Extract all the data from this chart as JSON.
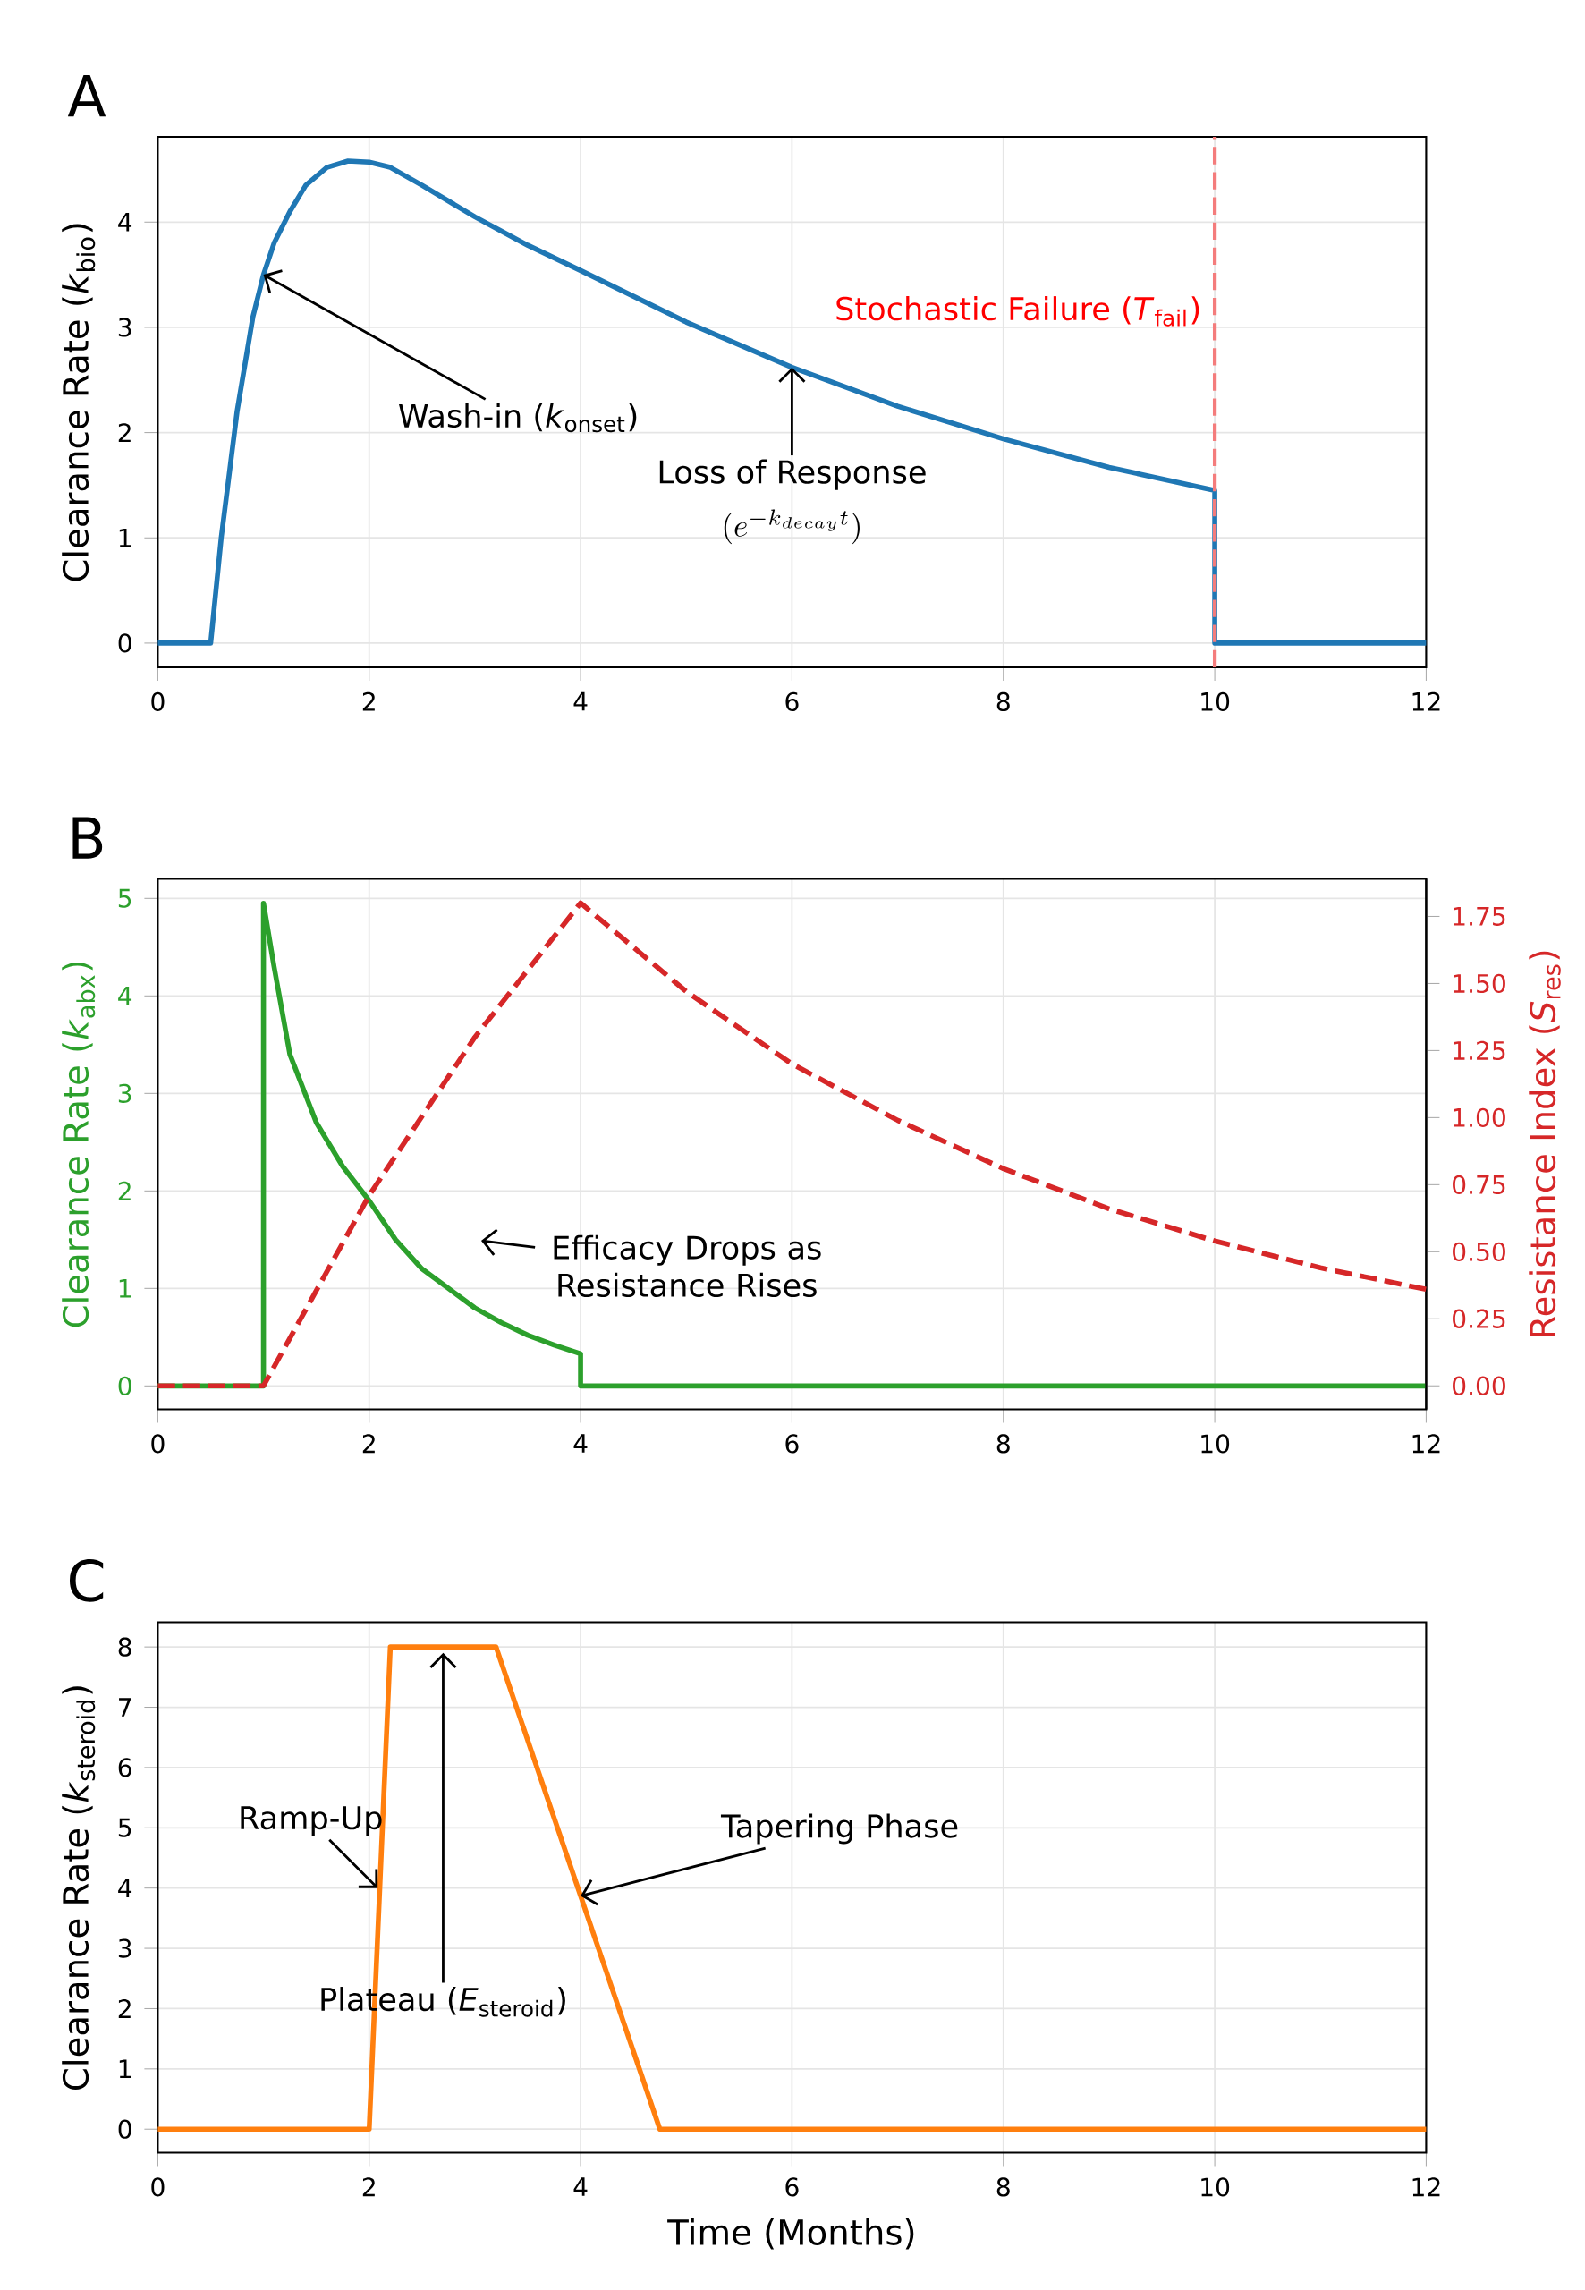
{
  "chart_data": [
    {
      "type": "line",
      "ylabel": "Clearance Rate (*k*$_{bio}$)",
      "x": [
        0,
        0.5,
        0.6,
        0.75,
        0.9,
        1.0,
        1.1,
        1.25,
        1.4,
        1.6,
        1.8,
        2.0,
        2.2,
        2.5,
        3,
        3.5,
        4,
        5,
        6,
        7,
        8,
        9,
        10,
        10,
        12
      ],
      "series": [
        {
          "color": "#1f77b4",
          "values": [
            0,
            0,
            1.0,
            2.2,
            3.1,
            3.5,
            3.8,
            4.1,
            4.35,
            4.52,
            4.58,
            4.57,
            4.52,
            4.35,
            4.05,
            3.78,
            3.54,
            3.05,
            2.62,
            2.25,
            1.94,
            1.67,
            1.45,
            0,
            0
          ]
        }
      ],
      "xlim": [
        0,
        12
      ],
      "ylim": [
        -0.23,
        4.81
      ],
      "xticks": [
        0,
        2,
        4,
        6,
        8,
        10,
        12
      ],
      "yticks": [
        0,
        1,
        2,
        3,
        4
      ],
      "grid": true,
      "line_style": "solid",
      "ref_lines": [
        {
          "axis": "x",
          "value": 10,
          "label": "Stochastic Failure (*T*$_{fail}$)",
          "color": "#f47c7c",
          "line_style": "dashed"
        }
      ],
      "annotations": [
        "A",
        {
          "text": "Wash-in (*k*$_{onset}$)",
          "x": 1.0,
          "y": 3.5
        },
        {
          "text": "Loss of Response",
          "x": 6,
          "y": 2.62
        },
        "(e^{-k_{decay}t})"
      ]
    },
    {
      "type": "line",
      "ylabel": "Clearance Rate (*k*$_{abx}$)",
      "y2label": "Resistance Index (*S*$_{res}$)",
      "series": [
        {
          "color": "#2ca02c",
          "line_style": "solid",
          "x": [
            0,
            1.0,
            1.0,
            1.1,
            1.25,
            1.5,
            1.75,
            2,
            2.25,
            2.5,
            2.75,
            3,
            3.25,
            3.5,
            3.75,
            4,
            4,
            12
          ],
          "values": [
            0,
            0,
            4.95,
            4.3,
            3.4,
            2.7,
            2.25,
            1.9,
            1.5,
            1.2,
            1.0,
            0.8,
            0.65,
            0.52,
            0.42,
            0.33,
            0,
            0
          ]
        },
        {
          "color": "#d62728",
          "line_style": "dashed",
          "axis": "y2",
          "x": [
            0,
            1,
            2,
            3,
            4,
            5,
            6,
            7,
            8,
            9,
            10,
            11,
            12
          ],
          "values": [
            0,
            0,
            0.71,
            1.3,
            1.8,
            1.47,
            1.2,
            0.99,
            0.81,
            0.66,
            0.54,
            0.44,
            0.36
          ]
        }
      ],
      "xlim": [
        0,
        12
      ],
      "ylim": [
        -0.24,
        5.2
      ],
      "y2lim": [
        -0.0875,
        1.89
      ],
      "xticks": [
        0,
        2,
        4,
        6,
        8,
        10,
        12
      ],
      "yticks": [
        0,
        1,
        2,
        3,
        4,
        5
      ],
      "y2ticks": [
        {
          "value": 0,
          "label": "0.00"
        },
        {
          "value": 0.25,
          "label": "0.25"
        },
        {
          "value": 0.5,
          "label": "0.50"
        },
        {
          "value": 0.75,
          "label": "0.75"
        },
        {
          "value": 1.0,
          "label": "1.00"
        },
        {
          "value": 1.25,
          "label": "1.25"
        },
        {
          "value": 1.5,
          "label": "1.50"
        },
        {
          "value": 1.75,
          "label": "1.75"
        }
      ],
      "grid": true,
      "annotations": [
        "B",
        "Efficacy Drops as Resistance Rises"
      ]
    },
    {
      "type": "line",
      "xlabel": "Time (Months)",
      "ylabel": "Clearance Rate (*k*$_{steroid}$)",
      "x": [
        0,
        2,
        2.2,
        3.2,
        4.75,
        12
      ],
      "series": [
        {
          "color": "#ff7f0e",
          "values": [
            0,
            0,
            8,
            8,
            0,
            0
          ]
        }
      ],
      "xlim": [
        0,
        12
      ],
      "ylim": [
        -0.39,
        8.41
      ],
      "xticks": [
        0,
        2,
        4,
        6,
        8,
        10,
        12
      ],
      "yticks": [
        0,
        1,
        2,
        3,
        4,
        5,
        6,
        7,
        8
      ],
      "grid": true,
      "line_style": "solid",
      "annotations": [
        "C",
        {
          "text": "Ramp-Up",
          "x": 2.08,
          "y": 4.0
        },
        {
          "text": "Plateau (*E*$_{steroid}$)",
          "x": 2.7,
          "y": 7.9
        },
        {
          "text": "Tapering Phase",
          "x": 4.0,
          "y": 3.87
        }
      ]
    }
  ]
}
